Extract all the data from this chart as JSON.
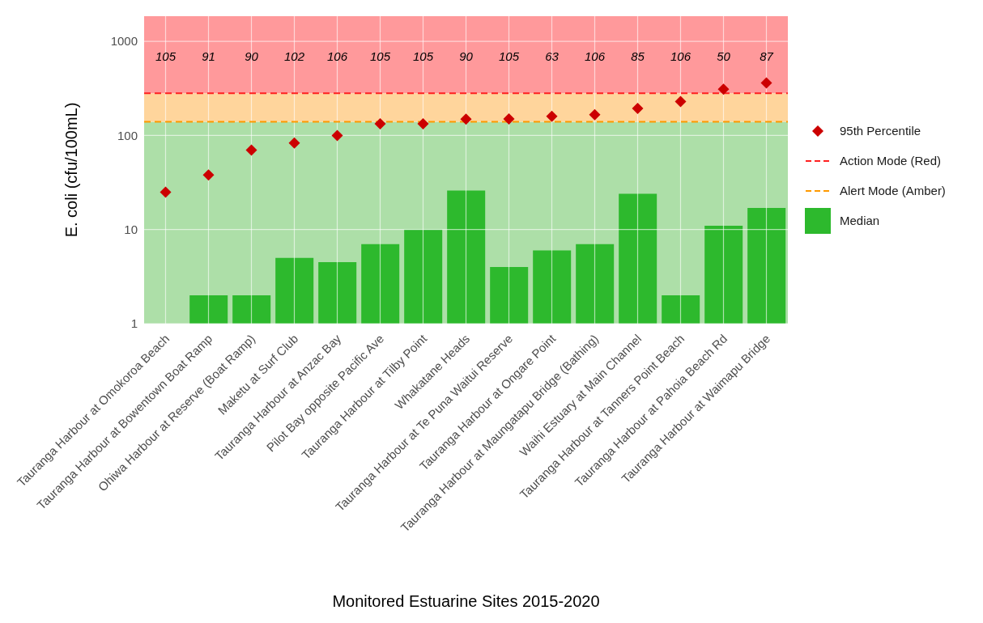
{
  "chart_data": {
    "type": "bar",
    "xlabel": "Monitored Estuarine Sites 2015-2020",
    "ylabel": "E. coli (cfu/100mL)",
    "categories": [
      "Tauranga Harbour at Omokoroa Beach",
      "Tauranga Harbour at Bowentown Boat Ramp",
      "Ohiwa Harbour at Reserve (Boat Ramp)",
      "Maketu at Surf Club",
      "Tauranga Harbour at Anzac Bay",
      "Pilot Bay opposite Pacific Ave",
      "Tauranga Harbour at Tilby Point",
      "Whakatane Heads",
      "Tauranga Harbour at Te Puna Waitui Reserve",
      "Tauranga Harbour at Ongare Point",
      "Tauranga Harbour at Maungatapu Bridge (Bathing)",
      "Waihi Estuary at Main Channel",
      "Tauranga Harbour at Tanners Point Beach",
      "Tauranga Harbour at Pahoia Beach Rd",
      "Tauranga Harbour at Waimapu Bridge"
    ],
    "series": [
      {
        "name": "Median",
        "color": "#2db92d",
        "values": [
          1,
          2,
          2,
          5,
          4.5,
          7,
          10,
          26,
          4,
          6,
          7,
          24,
          2,
          11,
          17
        ]
      },
      {
        "name": "95th Percentile",
        "type": "scatter",
        "color": "#cc0000",
        "marker": "diamond",
        "values": [
          25,
          38,
          70,
          83,
          100,
          133,
          133,
          149,
          150,
          160,
          166,
          194,
          229,
          310,
          361
        ]
      }
    ],
    "log": "y",
    "ylim": [
      1,
      1850
    ],
    "yticks": [
      1,
      10,
      100,
      1000
    ],
    "grid": true,
    "legend": "right",
    "ref_lines": [
      {
        "axis": "y",
        "value": 280,
        "label": "Action Mode (Red)",
        "color": "#ff2020",
        "line_style": "dashed"
      },
      {
        "axis": "y",
        "value": 140,
        "label": "Alert Mode (Amber)",
        "color": "#ff9900",
        "line_style": "dashed"
      }
    ],
    "bands": [
      {
        "axis": "y",
        "from": 1,
        "to": 140,
        "color": "#addfa8"
      },
      {
        "axis": "y",
        "from": 140,
        "to": 280,
        "color": "#ffd59c"
      },
      {
        "axis": "y",
        "from": 280,
        "to": 1850,
        "color": "#ff999b"
      }
    ],
    "annotations": [
      "105",
      "91",
      "90",
      "102",
      "106",
      "105",
      "105",
      "90",
      "105",
      "63",
      "106",
      "85",
      "106",
      "50",
      "87"
    ]
  }
}
